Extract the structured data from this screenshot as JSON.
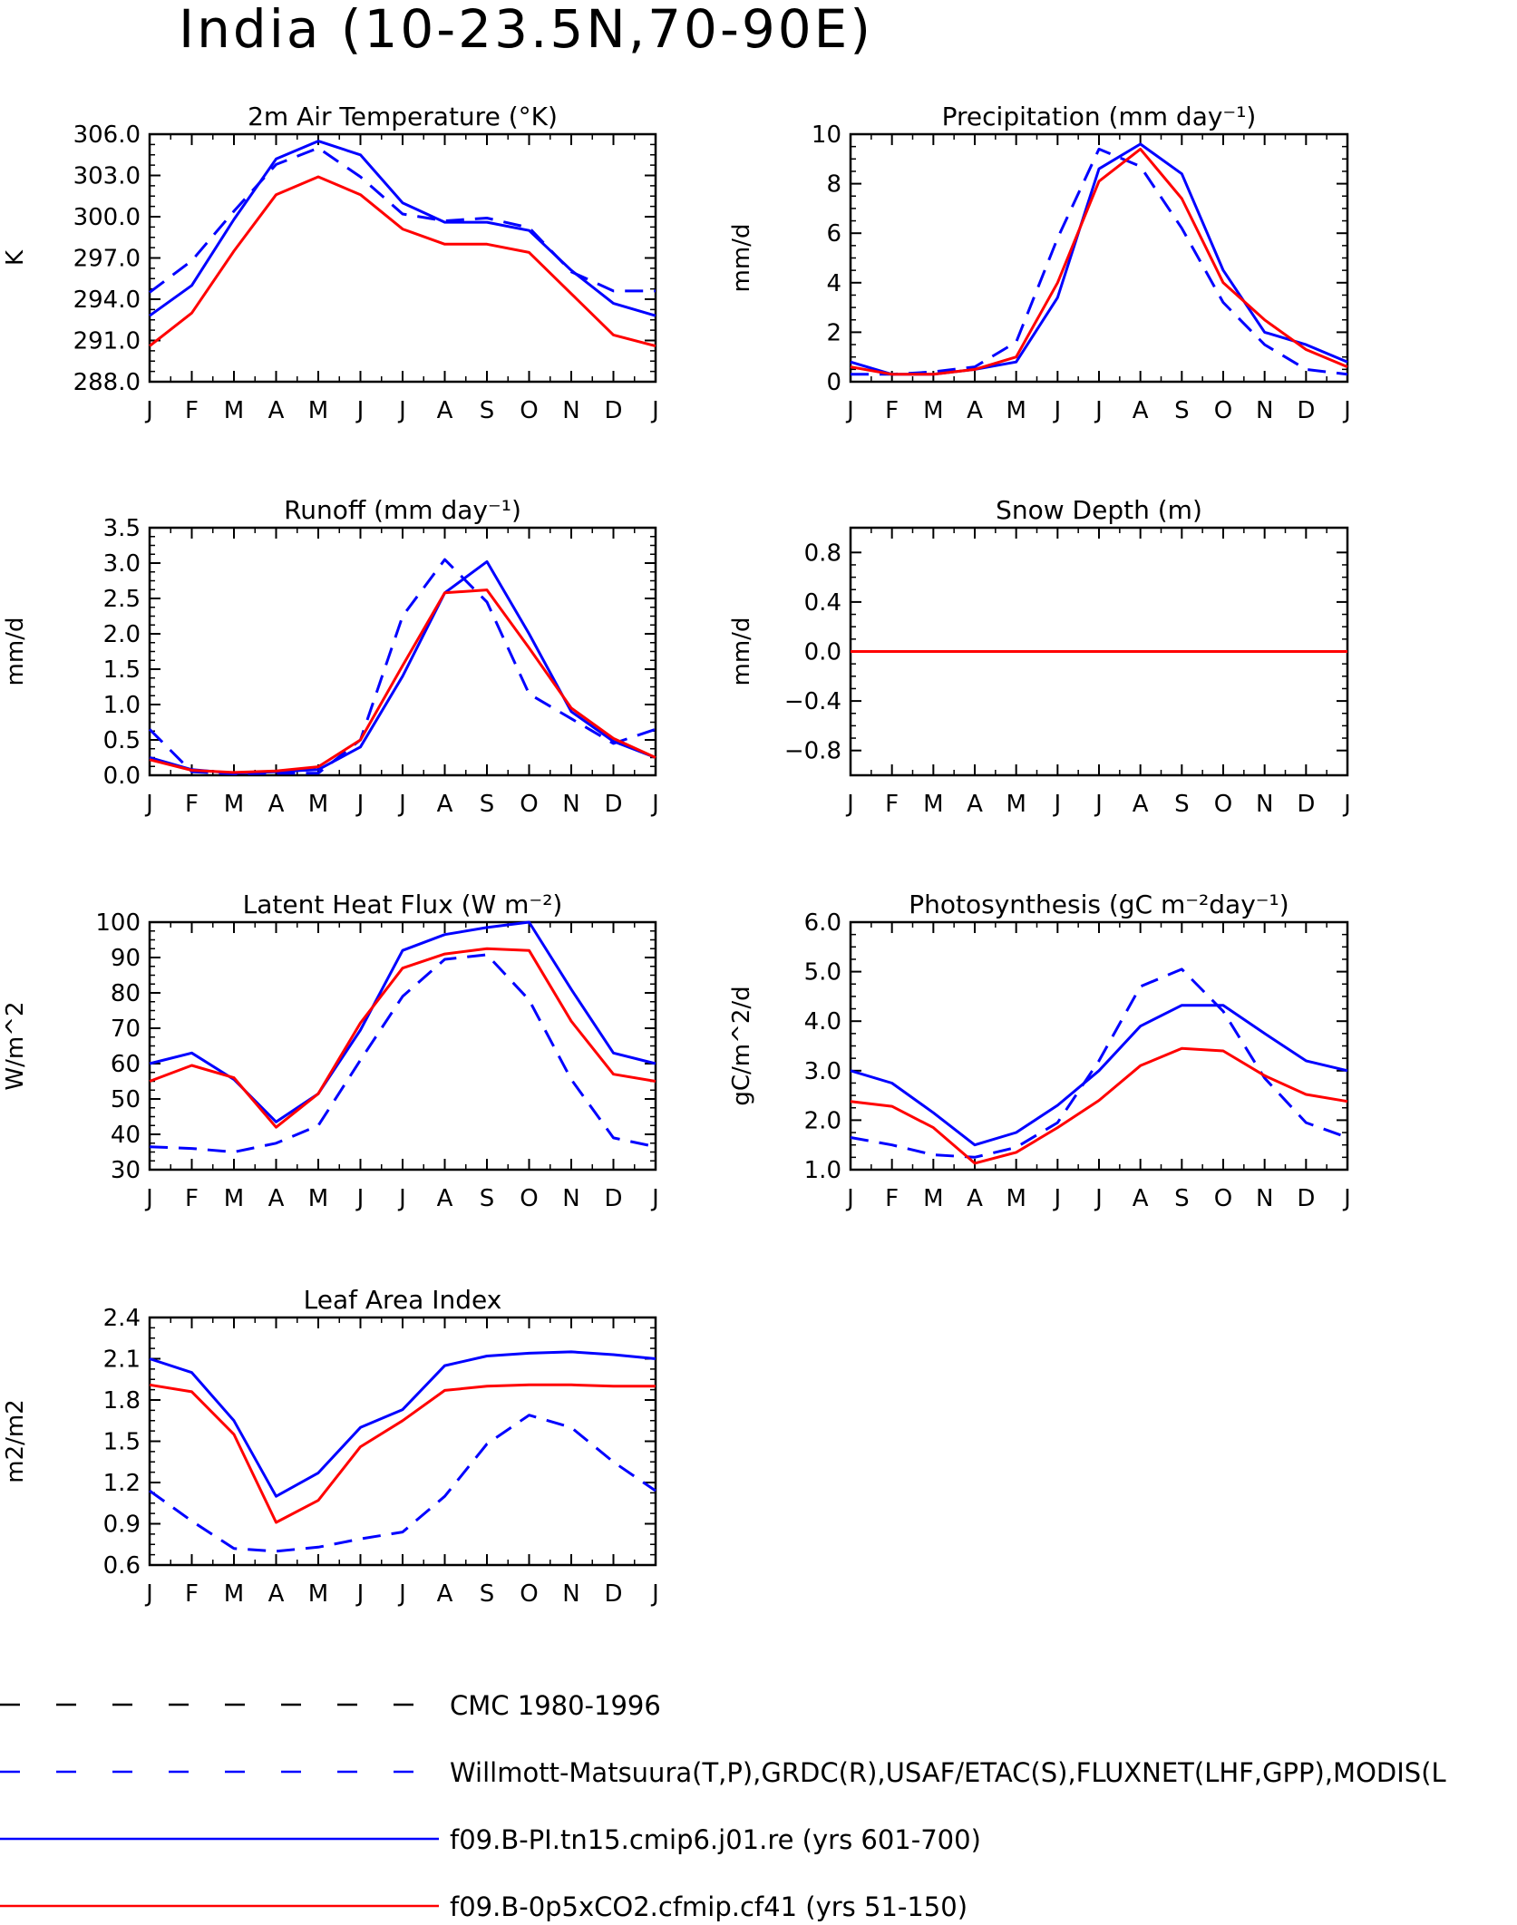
{
  "title": "India (10-23.5N,70-90E)",
  "months": [
    "J",
    "F",
    "M",
    "A",
    "M",
    "J",
    "J",
    "A",
    "S",
    "O",
    "N",
    "D",
    "J"
  ],
  "legend": [
    {
      "label": "CMC 1980-1996",
      "color": "#000000",
      "dash": true
    },
    {
      "label": "Willmott-Matsuura(T,P),GRDC(R),USAF/ETAC(S),FLUXNET(LHF,GPP),MODIS(L",
      "color": "#0000ff",
      "dash": true
    },
    {
      "label": "f09.B-PI.tn15.cmip6.j01.re (yrs 601-700)",
      "color": "#0000ff",
      "dash": false
    },
    {
      "label": "f09.B-0p5xCO2.cfmip.cf41 (yrs 51-150)",
      "color": "#ff0000",
      "dash": false
    }
  ],
  "chart_data": [
    {
      "type": "line",
      "title": "2m Air Temperature (°K)",
      "ylabel": "K",
      "ylim": [
        288,
        306
      ],
      "yticks": [
        288,
        291,
        294,
        297,
        300,
        303,
        306
      ],
      "yticklabels": [
        "288.0",
        "291.0",
        "294.0",
        "297.0",
        "300.0",
        "303.0",
        "306.0"
      ],
      "series": [
        {
          "name": "Willmott-Matsuura(T,P),GRDC(R),USAF/ETAC(S),FLUXNET(LHF,GPP),MODIS(L",
          "color": "#0000ff",
          "dash": true,
          "values": [
            294.5,
            296.8,
            300.4,
            303.8,
            305.0,
            302.9,
            300.2,
            299.7,
            299.9,
            299.2,
            296.0,
            294.6,
            294.6
          ]
        },
        {
          "name": "f09.B-PI.tn15.cmip6.j01.re (yrs 601-700)",
          "color": "#0000ff",
          "dash": false,
          "values": [
            292.8,
            295.0,
            299.8,
            304.2,
            305.5,
            304.5,
            301.0,
            299.6,
            299.6,
            299.0,
            296.1,
            293.7,
            292.8
          ]
        },
        {
          "name": "f09.B-0p5xCO2.cfmip.cf41 (yrs 51-150)",
          "color": "#ff0000",
          "dash": false,
          "values": [
            290.6,
            293.0,
            297.5,
            301.6,
            302.9,
            301.6,
            299.1,
            298.0,
            298.0,
            297.4,
            294.4,
            291.4,
            290.6
          ]
        }
      ]
    },
    {
      "type": "line",
      "title": "Precipitation (mm day⁻¹)",
      "ylabel": "mm/d",
      "ylim": [
        0,
        10
      ],
      "yticks": [
        0,
        2,
        4,
        6,
        8,
        10
      ],
      "yticklabels": [
        "0",
        "2",
        "4",
        "6",
        "8",
        "10"
      ],
      "series": [
        {
          "name": "Willmott-Matsuura(T,P),GRDC(R),USAF/ETAC(S),FLUXNET(LHF,GPP),MODIS(L",
          "color": "#0000ff",
          "dash": true,
          "values": [
            0.3,
            0.3,
            0.4,
            0.6,
            1.6,
            5.8,
            9.4,
            8.7,
            6.2,
            3.2,
            1.5,
            0.5,
            0.3
          ]
        },
        {
          "name": "f09.B-PI.tn15.cmip6.j01.re (yrs 601-700)",
          "color": "#0000ff",
          "dash": false,
          "values": [
            0.8,
            0.3,
            0.3,
            0.5,
            0.8,
            3.4,
            8.6,
            9.6,
            8.4,
            4.5,
            2.0,
            1.5,
            0.8
          ]
        },
        {
          "name": "f09.B-0p5xCO2.cfmip.cf41 (yrs 51-150)",
          "color": "#ff0000",
          "dash": false,
          "values": [
            0.6,
            0.3,
            0.3,
            0.5,
            1.0,
            4.0,
            8.1,
            9.4,
            7.4,
            4.0,
            2.5,
            1.3,
            0.6
          ]
        }
      ]
    },
    {
      "type": "line",
      "title": "Runoff (mm day⁻¹)",
      "ylabel": "mm/d",
      "ylim": [
        0,
        3.5
      ],
      "yticks": [
        0,
        0.5,
        1.0,
        1.5,
        2.0,
        2.5,
        3.0,
        3.5
      ],
      "yticklabels": [
        "0.0",
        "0.5",
        "1.0",
        "1.5",
        "2.0",
        "2.5",
        "3.0",
        "3.5"
      ],
      "series": [
        {
          "name": "Willmott-Matsuura(T,P),GRDC(R),USAF/ETAC(S),FLUXNET(LHF,GPP),MODIS(L",
          "color": "#0000ff",
          "dash": true,
          "values": [
            0.65,
            0.05,
            0.02,
            0.03,
            0.03,
            0.5,
            2.25,
            3.05,
            2.45,
            1.15,
            0.8,
            0.45,
            0.65
          ]
        },
        {
          "name": "f09.B-PI.tn15.cmip6.j01.re (yrs 601-700)",
          "color": "#0000ff",
          "dash": false,
          "values": [
            0.25,
            0.08,
            0.03,
            0.05,
            0.08,
            0.4,
            1.4,
            2.58,
            3.02,
            2.0,
            0.9,
            0.48,
            0.25
          ]
        },
        {
          "name": "f09.B-0p5xCO2.cfmip.cf41 (yrs 51-150)",
          "color": "#ff0000",
          "dash": false,
          "values": [
            0.22,
            0.07,
            0.04,
            0.06,
            0.12,
            0.5,
            1.55,
            2.58,
            2.62,
            1.8,
            0.95,
            0.52,
            0.25
          ]
        }
      ]
    },
    {
      "type": "line",
      "title": "Snow Depth (m)",
      "ylabel": "mm/d",
      "ylim": [
        -1.0,
        1.0
      ],
      "yticks": [
        -0.8,
        -0.4,
        0.0,
        0.4,
        0.8
      ],
      "yticklabels": [
        "−0.8",
        "−0.4",
        "0.0",
        "0.4",
        "0.8"
      ],
      "series": [
        {
          "name": "Willmott-Matsuura(T,P),GRDC(R),USAF/ETAC(S),FLUXNET(LHF,GPP),MODIS(L",
          "color": "#0000ff",
          "dash": true,
          "values": [
            0,
            0,
            0,
            0,
            0,
            0,
            0,
            0,
            0,
            0,
            0,
            0,
            0
          ]
        },
        {
          "name": "f09.B-PI.tn15.cmip6.j01.re (yrs 601-700)",
          "color": "#0000ff",
          "dash": false,
          "values": [
            0,
            0,
            0,
            0,
            0,
            0,
            0,
            0,
            0,
            0,
            0,
            0,
            0
          ]
        },
        {
          "name": "f09.B-0p5xCO2.cfmip.cf41 (yrs 51-150)",
          "color": "#ff0000",
          "dash": false,
          "values": [
            0,
            0,
            0,
            0,
            0,
            0,
            0,
            0,
            0,
            0,
            0,
            0,
            0
          ]
        }
      ]
    },
    {
      "type": "line",
      "title": "Latent Heat Flux (W m⁻²)",
      "ylabel": "W/m^2",
      "ylim": [
        30,
        100
      ],
      "yticks": [
        30,
        40,
        50,
        60,
        70,
        80,
        90,
        100
      ],
      "yticklabels": [
        "30",
        "40",
        "50",
        "60",
        "70",
        "80",
        "90",
        "100"
      ],
      "series": [
        {
          "name": "Willmott-Matsuura(T,P),GRDC(R),USAF/ETAC(S),FLUXNET(LHF,GPP),MODIS(L",
          "color": "#0000ff",
          "dash": true,
          "values": [
            36.5,
            36,
            35,
            37.5,
            42.5,
            61,
            79,
            89.5,
            90.8,
            78,
            55.5,
            39,
            36.5
          ]
        },
        {
          "name": "f09.B-PI.tn15.cmip6.j01.re (yrs 601-700)",
          "color": "#0000ff",
          "dash": false,
          "values": [
            60,
            63,
            55.5,
            43.5,
            51.5,
            69.5,
            92,
            96.5,
            98.5,
            100,
            81,
            63,
            60
          ]
        },
        {
          "name": "f09.B-0p5xCO2.cfmip.cf41 (yrs 51-150)",
          "color": "#ff0000",
          "dash": false,
          "values": [
            55,
            59.5,
            56,
            42,
            51.5,
            71.5,
            87,
            91,
            92.5,
            92,
            72,
            57,
            55
          ]
        }
      ]
    },
    {
      "type": "line",
      "title": "Photosynthesis (gC m⁻²day⁻¹)",
      "ylabel": "gC/m^2/d",
      "ylim": [
        1.0,
        6.0
      ],
      "yticks": [
        1,
        2,
        3,
        4,
        5,
        6
      ],
      "yticklabels": [
        "1.0",
        "2.0",
        "3.0",
        "4.0",
        "5.0",
        "6.0"
      ],
      "series": [
        {
          "name": "Willmott-Matsuura(T,P),GRDC(R),USAF/ETAC(S),FLUXNET(LHF,GPP),MODIS(L",
          "color": "#0000ff",
          "dash": true,
          "values": [
            1.65,
            1.5,
            1.3,
            1.25,
            1.45,
            1.95,
            3.2,
            4.7,
            5.05,
            4.2,
            2.85,
            1.95,
            1.65
          ]
        },
        {
          "name": "f09.B-PI.tn15.cmip6.j01.re (yrs 601-700)",
          "color": "#0000ff",
          "dash": false,
          "values": [
            3.0,
            2.75,
            2.15,
            1.5,
            1.75,
            2.3,
            3.0,
            3.9,
            4.32,
            4.32,
            3.75,
            3.2,
            3.0
          ]
        },
        {
          "name": "f09.B-0p5xCO2.cfmip.cf41 (yrs 51-150)",
          "color": "#ff0000",
          "dash": false,
          "values": [
            2.38,
            2.28,
            1.85,
            1.13,
            1.35,
            1.85,
            2.4,
            3.1,
            3.45,
            3.4,
            2.9,
            2.52,
            2.38
          ]
        }
      ]
    },
    {
      "type": "line",
      "title": "Leaf Area Index",
      "ylabel": "m2/m2",
      "ylim": [
        0.6,
        2.4
      ],
      "yticks": [
        0.6,
        0.9,
        1.2,
        1.5,
        1.8,
        2.1,
        2.4
      ],
      "yticklabels": [
        "0.6",
        "0.9",
        "1.2",
        "1.5",
        "1.8",
        "2.1",
        "2.4"
      ],
      "series": [
        {
          "name": "Willmott-Matsuura(T,P),GRDC(R),USAF/ETAC(S),FLUXNET(LHF,GPP),MODIS(L",
          "color": "#0000ff",
          "dash": true,
          "values": [
            1.14,
            0.92,
            0.72,
            0.7,
            0.73,
            0.79,
            0.84,
            1.1,
            1.48,
            1.69,
            1.6,
            1.35,
            1.14
          ]
        },
        {
          "name": "f09.B-PI.tn15.cmip6.j01.re (yrs 601-700)",
          "color": "#0000ff",
          "dash": false,
          "values": [
            2.1,
            2.0,
            1.65,
            1.1,
            1.27,
            1.6,
            1.73,
            2.05,
            2.12,
            2.14,
            2.15,
            2.13,
            2.1
          ]
        },
        {
          "name": "f09.B-0p5xCO2.cfmip.cf41 (yrs 51-150)",
          "color": "#ff0000",
          "dash": false,
          "values": [
            1.91,
            1.86,
            1.55,
            0.91,
            1.07,
            1.46,
            1.65,
            1.87,
            1.9,
            1.91,
            1.91,
            1.9,
            1.9
          ]
        }
      ]
    }
  ]
}
